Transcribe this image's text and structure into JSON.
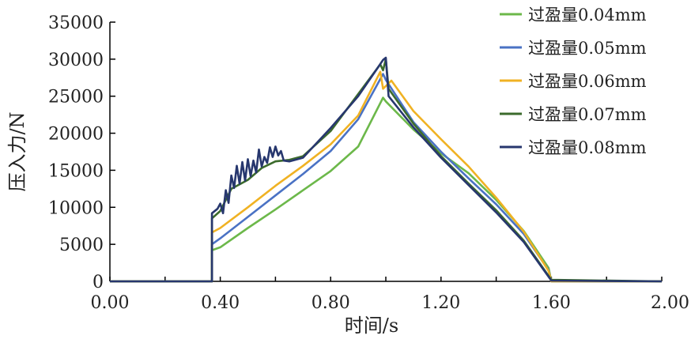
{
  "chart_data": {
    "type": "line",
    "title": "",
    "xlabel": "时间/s",
    "ylabel": "压入力/N",
    "xlim": [
      0,
      2.0
    ],
    "ylim": [
      0,
      35000
    ],
    "x_ticks": [
      "0.00",
      "0.40",
      "0.80",
      "1.20",
      "1.60",
      "2.00"
    ],
    "y_ticks": [
      "0",
      "5000",
      "10000",
      "15000",
      "20000",
      "25000",
      "30000",
      "35000"
    ],
    "grid": false,
    "legend_position": "top-right",
    "series": [
      {
        "name": "过盈量0.04mm",
        "color": "#6cb84a",
        "points": [
          [
            0,
            0
          ],
          [
            0.37,
            0
          ],
          [
            0.37,
            4200
          ],
          [
            0.4,
            4600
          ],
          [
            0.5,
            7200
          ],
          [
            0.6,
            9700
          ],
          [
            0.7,
            12300
          ],
          [
            0.8,
            14900
          ],
          [
            0.9,
            18200
          ],
          [
            0.99,
            24800
          ],
          [
            1.0,
            24300
          ],
          [
            1.1,
            20500
          ],
          [
            1.2,
            17300
          ],
          [
            1.3,
            14600
          ],
          [
            1.4,
            11000
          ],
          [
            1.5,
            6800
          ],
          [
            1.59,
            1800
          ],
          [
            1.6,
            0
          ],
          [
            2.0,
            0
          ]
        ]
      },
      {
        "name": "过盈量0.05mm",
        "color": "#4a72c4",
        "points": [
          [
            0,
            0
          ],
          [
            0.37,
            0
          ],
          [
            0.37,
            5000
          ],
          [
            0.4,
            5800
          ],
          [
            0.5,
            8700
          ],
          [
            0.6,
            11600
          ],
          [
            0.7,
            14500
          ],
          [
            0.8,
            17600
          ],
          [
            0.9,
            21900
          ],
          [
            0.99,
            28000
          ],
          [
            1.0,
            27200
          ],
          [
            1.1,
            21500
          ],
          [
            1.2,
            17500
          ],
          [
            1.3,
            13900
          ],
          [
            1.4,
            10400
          ],
          [
            1.5,
            6400
          ],
          [
            1.59,
            1500
          ],
          [
            1.6,
            0
          ],
          [
            2.0,
            0
          ]
        ]
      },
      {
        "name": "过盈量0.06mm",
        "color": "#f0b223",
        "points": [
          [
            0,
            0
          ],
          [
            0.37,
            0
          ],
          [
            0.37,
            6600
          ],
          [
            0.4,
            7200
          ],
          [
            0.5,
            10000
          ],
          [
            0.6,
            12900
          ],
          [
            0.7,
            15600
          ],
          [
            0.8,
            18500
          ],
          [
            0.9,
            22400
          ],
          [
            0.98,
            28300
          ],
          [
            0.99,
            26000
          ],
          [
            1.02,
            27100
          ],
          [
            1.1,
            23000
          ],
          [
            1.2,
            19200
          ],
          [
            1.3,
            15500
          ],
          [
            1.4,
            11300
          ],
          [
            1.5,
            6700
          ],
          [
            1.59,
            1400
          ],
          [
            1.6,
            0
          ],
          [
            2.0,
            0
          ]
        ]
      },
      {
        "name": "过盈量0.07mm",
        "color": "#3c6b2c",
        "points": [
          [
            0,
            0
          ],
          [
            0.37,
            0
          ],
          [
            0.37,
            8500
          ],
          [
            0.4,
            9500
          ],
          [
            0.44,
            12500
          ],
          [
            0.5,
            13700
          ],
          [
            0.55,
            15300
          ],
          [
            0.6,
            16200
          ],
          [
            0.65,
            16400
          ],
          [
            0.7,
            16900
          ],
          [
            0.8,
            20300
          ],
          [
            0.9,
            25300
          ],
          [
            0.98,
            29300
          ],
          [
            0.99,
            28500
          ],
          [
            1.0,
            30000
          ],
          [
            1.01,
            26000
          ],
          [
            1.1,
            21300
          ],
          [
            1.2,
            16900
          ],
          [
            1.3,
            13200
          ],
          [
            1.4,
            9600
          ],
          [
            1.5,
            5500
          ],
          [
            1.6,
            200
          ],
          [
            2.0,
            0
          ]
        ]
      },
      {
        "name": "过盈量0.08mm",
        "color": "#27376e",
        "points": [
          [
            0,
            0
          ],
          [
            0.37,
            0
          ],
          [
            0.37,
            9200
          ],
          [
            0.39,
            9800
          ],
          [
            0.4,
            10500
          ],
          [
            0.41,
            9200
          ],
          [
            0.42,
            12300
          ],
          [
            0.43,
            10600
          ],
          [
            0.44,
            14300
          ],
          [
            0.45,
            12600
          ],
          [
            0.46,
            15600
          ],
          [
            0.47,
            13200
          ],
          [
            0.48,
            16100
          ],
          [
            0.49,
            13600
          ],
          [
            0.5,
            16500
          ],
          [
            0.51,
            14200
          ],
          [
            0.52,
            16300
          ],
          [
            0.53,
            14700
          ],
          [
            0.54,
            17800
          ],
          [
            0.55,
            15500
          ],
          [
            0.56,
            16800
          ],
          [
            0.57,
            16000
          ],
          [
            0.58,
            18100
          ],
          [
            0.59,
            16800
          ],
          [
            0.6,
            18200
          ],
          [
            0.61,
            17000
          ],
          [
            0.62,
            17600
          ],
          [
            0.63,
            16300
          ],
          [
            0.65,
            16200
          ],
          [
            0.7,
            16700
          ],
          [
            0.8,
            20700
          ],
          [
            0.9,
            25000
          ],
          [
            0.97,
            28800
          ],
          [
            0.99,
            29900
          ],
          [
            1.0,
            30200
          ],
          [
            1.01,
            25000
          ],
          [
            1.1,
            20800
          ],
          [
            1.2,
            16700
          ],
          [
            1.3,
            13000
          ],
          [
            1.4,
            9300
          ],
          [
            1.5,
            5300
          ],
          [
            1.6,
            100
          ],
          [
            2.0,
            0
          ]
        ]
      }
    ]
  }
}
